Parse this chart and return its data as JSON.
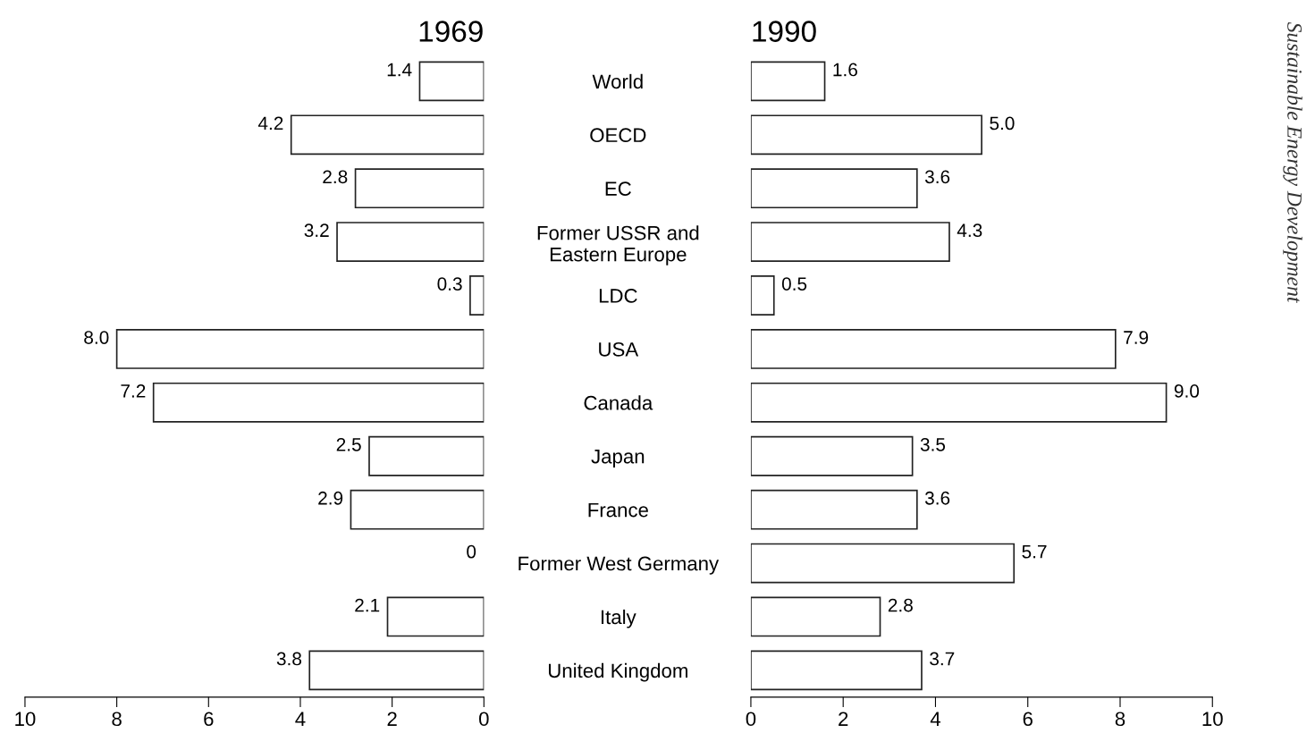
{
  "chart_data": [
    {
      "type": "bar",
      "orientation": "horizontal",
      "title": "1969",
      "categories": [
        "World",
        "OECD",
        "EC",
        "Former USSR and\nEastern Europe",
        "LDC",
        "USA",
        "Canada",
        "Japan",
        "France",
        "Former West Germany",
        "Italy",
        "United Kingdom"
      ],
      "values": [
        1.4,
        4.2,
        2.8,
        3.2,
        0.3,
        8.0,
        7.2,
        2.5,
        2.9,
        0,
        2.1,
        3.8
      ],
      "value_labels": [
        "1.4",
        "4.2",
        "2.8",
        "3.2",
        "0.3",
        "8.0",
        "7.2",
        "2.5",
        "2.9",
        "0",
        "2.1",
        "3.8"
      ],
      "color": "#ffffff",
      "xlim": [
        10,
        0
      ],
      "xticks": [
        10,
        8,
        6,
        4,
        2,
        0
      ],
      "grid": false
    },
    {
      "type": "bar",
      "orientation": "horizontal",
      "title": "1990",
      "categories": [
        null,
        null,
        null,
        null,
        null,
        null,
        null,
        null,
        null,
        null,
        null,
        null
      ],
      "values": [
        1.6,
        5.0,
        3.6,
        4.3,
        0.5,
        7.9,
        9.0,
        3.5,
        3.6,
        5.7,
        2.8,
        3.7
      ],
      "value_labels": [
        "1.6",
        "5.0",
        "3.6",
        "4.3",
        "0.5",
        "7.9",
        "9.0",
        "3.5",
        "3.6",
        "5.7",
        "2.8",
        "3.7"
      ],
      "color": "#ffffff",
      "xlim": [
        0,
        10
      ],
      "xticks": [
        0,
        2,
        4,
        6,
        8,
        10
      ],
      "grid": false,
      "annotations": [
        "Sustainable Energy Development"
      ]
    }
  ]
}
